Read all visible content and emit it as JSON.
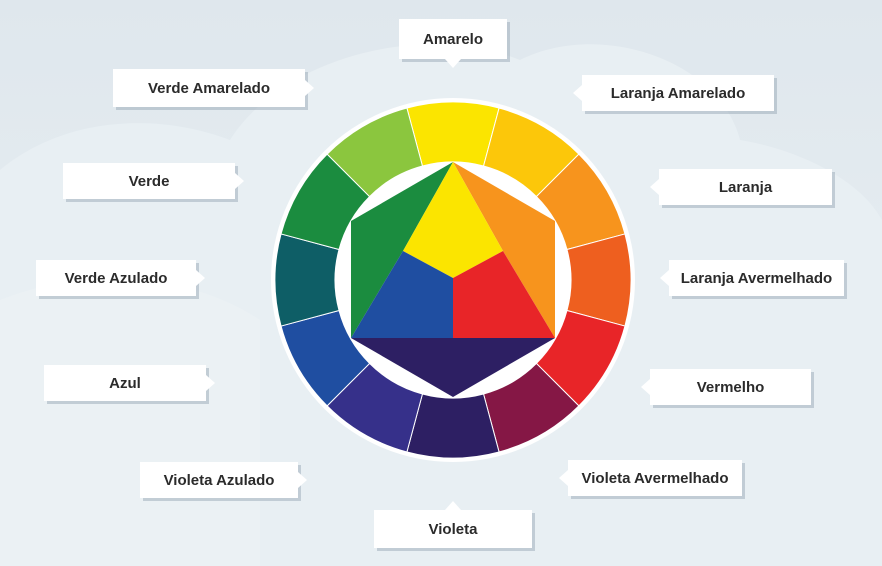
{
  "labels": {
    "amarelo": "Amarelo",
    "laranja_amarelado": "Laranja Amarelado",
    "laranja": "Laranja",
    "laranja_avermelhado": "Laranja Avermelhado",
    "vermelho": "Vermelho",
    "violeta_avermelhado": "Violeta Avermelhado",
    "violeta": "Violeta",
    "violeta_azulado": "Violeta Azulado",
    "azul": "Azul",
    "verde_azulado": "Verde Azulado",
    "verde": "Verde",
    "verde_amarelado": "Verde Amarelado"
  },
  "colors": {
    "yellow": "#fbe500",
    "yellow_orange": "#fcc70a",
    "orange": "#f7941d",
    "red_orange": "#ee5f1f",
    "red": "#e82528",
    "red_violet": "#851745",
    "violet": "#2d1f63",
    "blue_violet": "#36308a",
    "blue": "#1f4ea1",
    "blue_green": "#0e5e66",
    "green": "#1b8c3f",
    "yellow_green": "#8bc63e",
    "ring_background": "#ffffff",
    "background": "#e3eaef"
  }
}
